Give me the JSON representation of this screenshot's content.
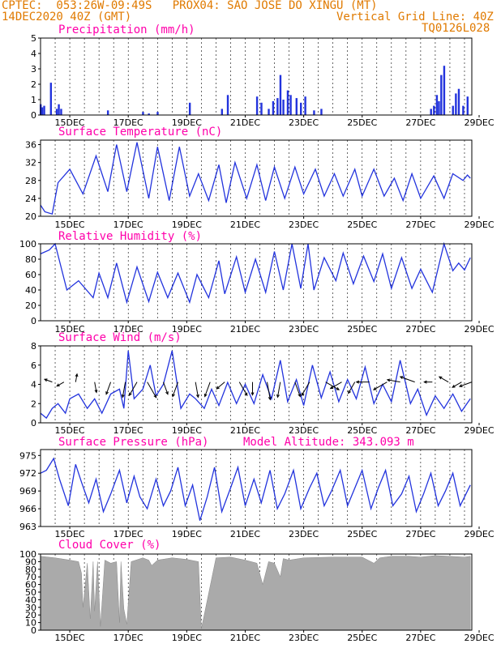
{
  "header": {
    "left1": "CPTEC:  053:26W-09:49S   PROX04: SAO JOSE DO XINGU (MT)",
    "left2": "14DEC2020 40Z (GMT)",
    "right2": "Vertical Grid Line: 40Z",
    "right3": "TQ0126L028"
  },
  "x_labels": [
    "15DEC",
    "17DEC",
    "19DEC",
    "21DEC",
    "23DEC",
    "25DEC",
    "27DEC",
    "29DEC"
  ],
  "colors": {
    "series": "#2233dd",
    "title": "#ff00aa",
    "header": "#e07a00",
    "cloud": "#aaaaaa"
  },
  "chart_data": [
    {
      "type": "bar",
      "title": "Precipitation (mm/h)",
      "ylim": [
        0,
        5
      ],
      "yticks": [
        "0",
        "1",
        "2",
        "3",
        "4",
        "5"
      ],
      "x_days": [
        14.0,
        14.05,
        14.12,
        14.35,
        14.55,
        14.62,
        14.7,
        16.3,
        17.5,
        17.7,
        18.0,
        19.1,
        20.2,
        20.4,
        21.4,
        21.55,
        21.8,
        21.95,
        22.1,
        22.2,
        22.3,
        22.45,
        22.55,
        22.75,
        22.9,
        23.05,
        23.35,
        23.6,
        27.35,
        27.45,
        27.55,
        27.62,
        27.7,
        27.8,
        28.1,
        28.2,
        28.3,
        28.45,
        28.6
      ],
      "values": [
        0.7,
        0.5,
        0.6,
        2.1,
        0.4,
        0.7,
        0.4,
        0.3,
        0.2,
        0.1,
        0.2,
        0.8,
        0.4,
        1.3,
        1.2,
        0.8,
        0.4,
        0.9,
        1.1,
        2.6,
        1.0,
        1.6,
        1.3,
        1.1,
        0.8,
        1.2,
        0.3,
        0.4,
        0.4,
        0.6,
        1.3,
        0.9,
        2.6,
        3.2,
        0.6,
        1.4,
        1.7,
        0.6,
        1.2
      ]
    },
    {
      "type": "line",
      "title": "Surface Temperature (nC)",
      "ylim": [
        20,
        37
      ],
      "yticks": [
        "20",
        "24",
        "28",
        "32",
        "36"
      ],
      "x_days": [
        14.0,
        14.15,
        14.4,
        14.6,
        15.0,
        15.45,
        15.9,
        16.3,
        16.6,
        16.95,
        17.3,
        17.7,
        18.0,
        18.4,
        18.75,
        19.1,
        19.4,
        19.75,
        20.1,
        20.35,
        20.65,
        21.05,
        21.4,
        21.7,
        22.0,
        22.35,
        22.7,
        23.0,
        23.4,
        23.7,
        24.05,
        24.35,
        24.75,
        25.0,
        25.4,
        25.75,
        26.1,
        26.4,
        26.7,
        27.0,
        27.45,
        27.8,
        28.1,
        28.45,
        28.6,
        28.7
      ],
      "values": [
        22.5,
        21.0,
        20.5,
        27.5,
        30.5,
        25.0,
        33.5,
        25.5,
        36.0,
        25.5,
        36.5,
        24.0,
        35.5,
        23.5,
        35.5,
        24.5,
        29.5,
        23.5,
        31.5,
        23.0,
        32.0,
        24.0,
        31.5,
        23.5,
        31.0,
        24.0,
        31.0,
        25.0,
        30.5,
        24.5,
        29.5,
        24.5,
        30.5,
        24.5,
        30.5,
        24.5,
        28.5,
        23.5,
        29.5,
        24.0,
        29.0,
        24.0,
        29.5,
        28.0,
        29.2,
        28.5
      ]
    },
    {
      "type": "line",
      "title": "Relative Humidity (%)",
      "ylim": [
        0,
        100
      ],
      "yticks": [
        "0",
        "20",
        "40",
        "60",
        "80",
        "100"
      ],
      "x_days": [
        14.0,
        14.3,
        14.5,
        14.9,
        15.3,
        15.8,
        16.0,
        16.3,
        16.6,
        16.95,
        17.3,
        17.7,
        18.0,
        18.35,
        18.7,
        19.1,
        19.35,
        19.75,
        20.1,
        20.3,
        20.7,
        21.0,
        21.35,
        21.7,
        22.0,
        22.3,
        22.6,
        22.9,
        23.15,
        23.35,
        23.7,
        24.1,
        24.35,
        24.7,
        25.05,
        25.4,
        25.7,
        26.0,
        26.35,
        26.7,
        27.0,
        27.4,
        27.8,
        28.1,
        28.3,
        28.5,
        28.7
      ],
      "values": [
        87,
        92,
        100,
        40,
        52,
        30,
        62,
        30,
        75,
        24,
        70,
        25,
        63,
        30,
        62,
        24,
        60,
        30,
        78,
        35,
        83,
        37,
        80,
        37,
        90,
        40,
        100,
        42,
        100,
        40,
        82,
        52,
        88,
        48,
        84,
        51,
        87,
        42,
        82,
        42,
        67,
        37,
        100,
        65,
        75,
        66,
        82
      ]
    },
    {
      "type": "line",
      "title": "Surface Wind (m/s)",
      "ylim": [
        0,
        8
      ],
      "yticks": [
        "0",
        "2",
        "4",
        "6",
        "8"
      ],
      "x_days": [
        14.0,
        14.2,
        14.4,
        14.6,
        14.85,
        15.0,
        15.3,
        15.6,
        15.85,
        16.1,
        16.4,
        16.7,
        16.85,
        17.0,
        17.2,
        17.5,
        17.75,
        17.95,
        18.2,
        18.5,
        18.8,
        19.1,
        19.3,
        19.6,
        19.85,
        20.1,
        20.4,
        20.7,
        21.0,
        21.3,
        21.6,
        21.9,
        22.2,
        22.45,
        22.75,
        23.0,
        23.3,
        23.6,
        23.9,
        24.2,
        24.5,
        24.8,
        25.1,
        25.4,
        25.7,
        26.0,
        26.3,
        26.65,
        26.9,
        27.2,
        27.5,
        27.8,
        28.1,
        28.4,
        28.7
      ],
      "values": [
        1.0,
        0.5,
        1.5,
        2.0,
        1.0,
        2.5,
        3.0,
        1.5,
        2.5,
        1.0,
        3.0,
        3.5,
        1.5,
        7.5,
        2.5,
        3.5,
        6.0,
        2.8,
        4.0,
        7.5,
        1.5,
        3.0,
        2.5,
        1.5,
        3.5,
        1.8,
        4.2,
        2.0,
        4.0,
        2.0,
        5.0,
        2.5,
        6.5,
        2.2,
        4.5,
        1.8,
        6.0,
        2.6,
        5.3,
        2.2,
        4.5,
        2.5,
        5.8,
        2.0,
        4.0,
        2.2,
        6.5,
        2.0,
        3.5,
        0.8,
        2.8,
        1.5,
        3.0,
        1.2,
        2.5
      ],
      "arrows": {
        "x_days": [
          14.4,
          14.8,
          15.2,
          15.85,
          16.4,
          16.9,
          17.3,
          17.65,
          18.2,
          18.7,
          19.3,
          19.8,
          20.3,
          20.8,
          21.25,
          21.75,
          22.2,
          22.7,
          23.2,
          23.75,
          24.3,
          24.75,
          25.25,
          25.85,
          26.3,
          26.8,
          27.4,
          27.95,
          28.4,
          28.75
        ],
        "directions_deg": [
          200,
          150,
          280,
          80,
          110,
          100,
          120,
          60,
          70,
          110,
          80,
          110,
          140,
          60,
          90,
          80,
          100,
          70,
          120,
          30,
          150,
          120,
          180,
          150,
          190,
          200,
          180,
          210,
          150,
          160
        ],
        "speeds": [
          2,
          2,
          2,
          3,
          4,
          5,
          5,
          6,
          4,
          5,
          5,
          5,
          3,
          5,
          4,
          6,
          5,
          5,
          5,
          5,
          4,
          4,
          4,
          5,
          4,
          5,
          2,
          3,
          3,
          4
        ]
      }
    },
    {
      "type": "line",
      "title": "Surface Pressure (hPa)",
      "annotation": "Model Altitude: 343.093 m",
      "ylim": [
        963,
        976
      ],
      "yticks": [
        "963",
        "966",
        "969",
        "972",
        "975"
      ],
      "x_days": [
        14.0,
        14.2,
        14.45,
        14.65,
        14.95,
        15.2,
        15.4,
        15.65,
        15.9,
        16.15,
        16.4,
        16.7,
        16.95,
        17.2,
        17.4,
        17.65,
        17.95,
        18.2,
        18.45,
        18.7,
        18.95,
        19.2,
        19.45,
        19.7,
        19.95,
        20.2,
        20.5,
        20.75,
        21.0,
        21.3,
        21.55,
        21.85,
        22.1,
        22.35,
        22.65,
        22.9,
        23.2,
        23.45,
        23.7,
        23.95,
        24.25,
        24.5,
        24.75,
        25.0,
        25.3,
        25.55,
        25.8,
        26.05,
        26.35,
        26.6,
        26.85,
        27.1,
        27.35,
        27.6,
        27.85,
        28.1,
        28.35,
        28.55,
        28.7
      ],
      "values": [
        972.0,
        972.5,
        974.5,
        971.0,
        966.5,
        973.5,
        970.5,
        967.0,
        971.0,
        965.5,
        968.5,
        972.5,
        967.0,
        971.5,
        968.0,
        966.0,
        971.0,
        966.5,
        969.0,
        973.0,
        966.5,
        970.0,
        964.0,
        968.0,
        973.0,
        965.5,
        969.5,
        973.0,
        966.5,
        971.0,
        967.0,
        972.5,
        966.0,
        968.5,
        972.5,
        966.0,
        969.5,
        972.0,
        966.5,
        969.0,
        972.5,
        966.5,
        969.5,
        972.5,
        966.0,
        969.5,
        972.5,
        966.5,
        968.5,
        971.5,
        965.5,
        968.5,
        972.0,
        966.5,
        969.0,
        972.0,
        966.5,
        968.5,
        970.0
      ]
    },
    {
      "type": "area",
      "title": "Cloud Cover (%)",
      "ylim": [
        0,
        100
      ],
      "yticks": [
        "0",
        "10",
        "20",
        "30",
        "40",
        "50",
        "60",
        "70",
        "80",
        "90",
        "100"
      ],
      "x_days": [
        14.0,
        14.5,
        15.0,
        15.3,
        15.4,
        15.45,
        15.6,
        15.7,
        15.8,
        15.85,
        15.95,
        16.05,
        16.2,
        16.4,
        16.6,
        16.7,
        16.75,
        16.85,
        16.95,
        17.1,
        17.5,
        17.7,
        17.8,
        18.0,
        18.5,
        19.0,
        19.4,
        19.5,
        20.0,
        20.5,
        21.0,
        21.4,
        21.6,
        21.8,
        22.0,
        22.2,
        22.3,
        22.5,
        23.0,
        24.0,
        25.0,
        25.4,
        25.6,
        26.0,
        26.6,
        27.0,
        27.5,
        28.0,
        28.5,
        28.7
      ],
      "values": [
        97,
        95,
        92,
        90,
        75,
        30,
        88,
        15,
        90,
        25,
        90,
        5,
        92,
        88,
        90,
        10,
        90,
        28,
        8,
        90,
        95,
        92,
        85,
        92,
        95,
        93,
        90,
        2,
        95,
        96,
        92,
        88,
        60,
        90,
        88,
        70,
        94,
        92,
        95,
        96,
        96,
        88,
        95,
        97,
        97,
        96,
        98,
        97,
        96,
        97
      ]
    }
  ]
}
